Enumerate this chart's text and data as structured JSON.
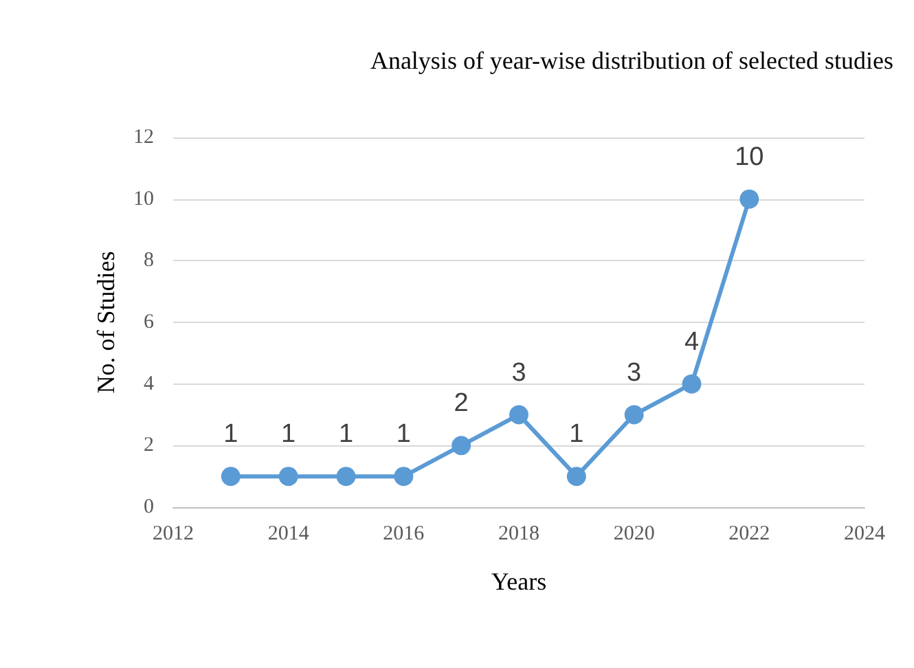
{
  "chart_data": {
    "type": "line",
    "title": "Analysis of year-wise distribution of selected studies",
    "xlabel": "Years",
    "ylabel": "No. of Studies",
    "x": [
      2013,
      2014,
      2015,
      2016,
      2017,
      2018,
      2019,
      2020,
      2021,
      2022
    ],
    "series": [
      {
        "color": "#5b9bd5",
        "values": [
          1,
          1,
          1,
          1,
          2,
          3,
          1,
          3,
          4,
          10
        ]
      }
    ],
    "xlim": [
      2012,
      2024
    ],
    "xticks": [
      2012,
      2014,
      2016,
      2018,
      2020,
      2022,
      2024
    ],
    "ylim": [
      0,
      12
    ],
    "yticks": [
      0,
      2,
      4,
      6,
      8,
      10,
      12
    ],
    "grid": "y",
    "data_labels": true,
    "marker": "circle",
    "line_style": "solid"
  }
}
